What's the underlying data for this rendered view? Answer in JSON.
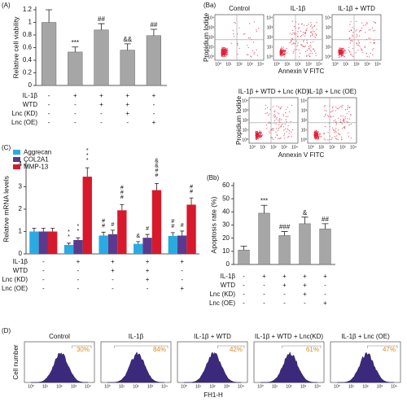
{
  "chart_data": [
    {
      "type": "bar",
      "panel": "(A)",
      "y_label": "Relative cell viability",
      "color": "#a6a6a6",
      "categories": [
        null,
        null,
        null,
        null,
        null
      ],
      "values": [
        1.0,
        0.53,
        0.88,
        0.56,
        0.79
      ],
      "errors": [
        0.2,
        0.08,
        0.1,
        0.1,
        0.1
      ],
      "annotations": [
        "",
        "***",
        "##",
        "&&",
        "##"
      ],
      "ylim": [
        0,
        1.2
      ],
      "yticks": [
        0,
        0.2,
        0.4,
        0.6,
        0.8,
        1,
        1.2
      ],
      "conditions": [
        {
          "name": "IL-1β",
          "values": [
            "-",
            "+",
            "+",
            "+",
            "+"
          ]
        },
        {
          "name": "WTD",
          "values": [
            "-",
            "-",
            "+",
            "+",
            "-"
          ]
        },
        {
          "name": "Lnc (KD)",
          "values": [
            "-",
            "-",
            "-",
            "+",
            "-"
          ]
        },
        {
          "name": "Lnc (OE)",
          "values": [
            "-",
            "-",
            "-",
            "-",
            "+"
          ]
        }
      ]
    },
    {
      "type": "grouped_bar",
      "panel": "(C)",
      "y_label": "Relative mRNA levels",
      "categories": [
        null,
        null,
        null,
        null,
        null
      ],
      "series": [
        {
          "name": "Aggrecan",
          "color": "#29abe2",
          "values": [
            1.0,
            0.4,
            0.82,
            0.45,
            0.8
          ],
          "errors": [
            0.15,
            0.08,
            0.15,
            0.1,
            0.15
          ],
          "annotations": [
            "",
            "**",
            "##",
            "&",
            "##"
          ]
        },
        {
          "name": "COL2A1",
          "color": "#5b3a8e",
          "values": [
            1.0,
            0.62,
            0.88,
            0.72,
            0.82
          ],
          "errors": [
            0.15,
            0.1,
            0.18,
            0.15,
            0.2
          ],
          "annotations": [
            "",
            "**",
            "#",
            "#",
            "#"
          ]
        },
        {
          "name": "MMP-13",
          "color": "#d7192b",
          "values": [
            1.0,
            3.45,
            1.95,
            2.85,
            2.2
          ],
          "errors": [
            0.15,
            0.4,
            0.25,
            0.3,
            0.3
          ],
          "annotations": [
            "",
            "***",
            "###",
            "&&##",
            "##"
          ]
        }
      ],
      "ylim": [
        0,
        4
      ],
      "yticks": [
        0,
        1,
        2,
        3,
        4
      ],
      "conditions": [
        {
          "name": "IL-1β",
          "values": [
            "-",
            "+",
            "+",
            "+",
            "+"
          ]
        },
        {
          "name": "WTD",
          "values": [
            "-",
            "-",
            "+",
            "+",
            "-"
          ]
        },
        {
          "name": "Lnc (KD)",
          "values": [
            "-",
            "-",
            "-",
            "+",
            "-"
          ]
        },
        {
          "name": "Lnc (OE)",
          "values": [
            "-",
            "-",
            "-",
            "-",
            "+"
          ]
        }
      ]
    },
    {
      "type": "bar",
      "panel": "(Bb)",
      "y_label": "Apoptosis rate (%)",
      "color": "#a6a6a6",
      "categories": [
        null,
        null,
        null,
        null,
        null
      ],
      "values": [
        11,
        39,
        22,
        31,
        27
      ],
      "errors": [
        3,
        6,
        3,
        5,
        4
      ],
      "annotations": [
        "",
        "***",
        "###",
        "&",
        "##"
      ],
      "ylim": [
        0,
        60
      ],
      "yticks": [
        0,
        10,
        20,
        30,
        40,
        50,
        60
      ],
      "conditions": [
        {
          "name": "IL-1β",
          "values": [
            "-",
            "+",
            "+",
            "+",
            "+"
          ]
        },
        {
          "name": "WTD",
          "values": [
            "-",
            "-",
            "+",
            "+",
            "-"
          ]
        },
        {
          "name": "Lnc (KD)",
          "values": [
            "-",
            "-",
            "-",
            "+",
            "-"
          ]
        },
        {
          "name": "Lnc (OE)",
          "values": [
            "-",
            "-",
            "-",
            "-",
            "+"
          ]
        }
      ]
    }
  ],
  "flow_cytometry": {
    "panel": "(Ba)",
    "titles": [
      "Control",
      "IL-1β",
      "IL-1β + WTD",
      "IL-1β + WTD + Lnc (KD)",
      "IL-1β + Lnc (OE)"
    ],
    "y_label": "Propidium Iodide",
    "x_label": "Annexin V FITC",
    "ticks": [
      "10⁰",
      "10¹",
      "10²",
      "10³",
      "10⁴"
    ]
  },
  "histograms": {
    "panel": "(D)",
    "titles": [
      "Control",
      "IL-1β",
      "IL-1β + WTD",
      "IL-1β + WTD + Lnc(KD)",
      "IL-1β + Lnc (OE)"
    ],
    "values": [
      30,
      84,
      42,
      61,
      47
    ],
    "value_labels": [
      "30%",
      "84%",
      "42%",
      "61%",
      "47%"
    ],
    "y_label": "Cell number",
    "x_label": "FH1-H",
    "ticks": [
      "10⁰",
      "10¹",
      "10²",
      "10³",
      "10⁴"
    ]
  }
}
